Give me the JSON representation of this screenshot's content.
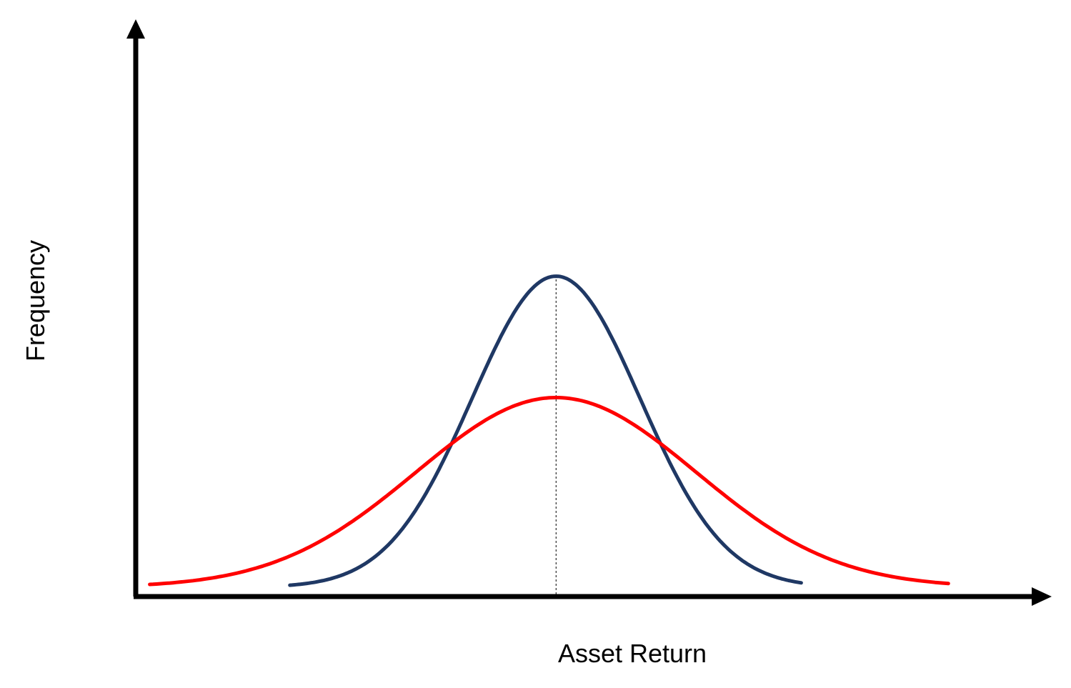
{
  "chart_data": {
    "type": "line",
    "title": "",
    "xlabel": "Asset Return",
    "ylabel": "Frequency",
    "grid": false,
    "legend": "none",
    "series": [
      {
        "color": "#1F3864",
        "distribution": "normal",
        "mean": 0,
        "std": 0.6,
        "peak": 0.82,
        "x_range": [
          -1.9,
          1.75
        ]
      },
      {
        "color": "#FF0000",
        "distribution": "normal",
        "mean": 0,
        "std": 1.0,
        "peak": 0.5,
        "x_range": [
          -2.9,
          2.8
        ]
      }
    ],
    "xlim": [
      -3,
      3.4
    ],
    "ylim": [
      0,
      1.45
    ],
    "mean_marker": {
      "x": 0,
      "style": "dashed"
    }
  }
}
